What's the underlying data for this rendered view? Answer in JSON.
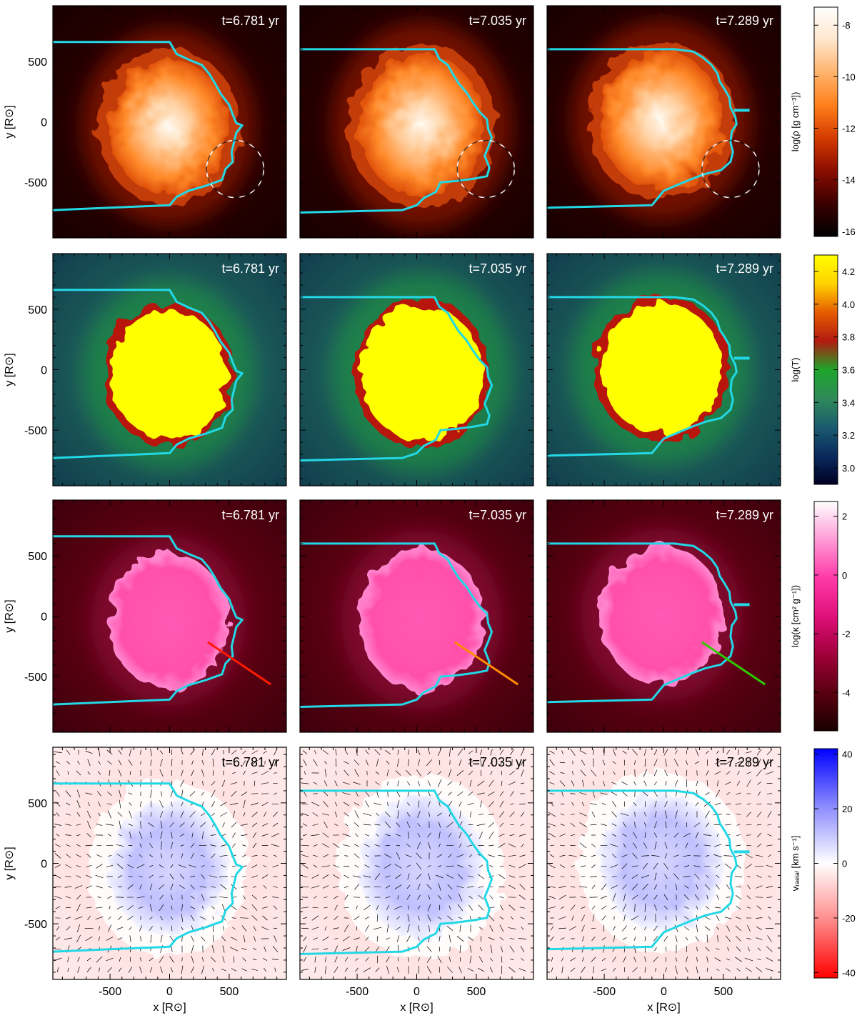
{
  "figure": {
    "times": [
      "t=6.781 yr",
      "t=7.035 yr",
      "t=7.289 yr"
    ],
    "ylabel": "y [R⊙]",
    "xlabel": "x [R⊙]",
    "xticks": [
      "-500",
      "0",
      "500"
    ],
    "yticks": [
      "500",
      "0",
      "-500"
    ],
    "rows": [
      {
        "quantity": "density",
        "colorbar_label": "log(ρ [g cm⁻³])",
        "colorbar_ticks": [
          "-8",
          "-10",
          "-12",
          "-14",
          "-16"
        ],
        "colorbar_range": [
          -16.2,
          -7.3
        ],
        "colormap": [
          "#000000",
          "#3a0000",
          "#8a0d00",
          "#d43a00",
          "#ff7f1a",
          "#ffb36b",
          "#ffe6cc",
          "#ffffff"
        ]
      },
      {
        "quantity": "temperature",
        "colorbar_label": "log(T)",
        "colorbar_ticks": [
          "4.2",
          "4.0",
          "3.8",
          "3.6",
          "3.4",
          "3.2",
          "3.0"
        ],
        "colorbar_range": [
          2.9,
          4.3
        ],
        "colormap": [
          "#000022",
          "#0a2a5e",
          "#1b5b6e",
          "#2f8a5a",
          "#1ea62a",
          "#b31a10",
          "#e65c00",
          "#ffd200",
          "#ffff00"
        ]
      },
      {
        "quantity": "opacity",
        "colorbar_label": "log(κ [cm² g⁻¹])",
        "colorbar_ticks": [
          "2",
          "0",
          "-2",
          "-4"
        ],
        "colorbar_range": [
          -5.3,
          2.5
        ],
        "colormap": [
          "#1a0000",
          "#5a0010",
          "#a0003a",
          "#e0107a",
          "#ff3aa8",
          "#ff9ad6",
          "#ffffff"
        ]
      },
      {
        "quantity": "radial velocity",
        "colorbar_label": "vᵣₐₑᵢₐₗ [km s⁻¹]",
        "colorbar_ticks": [
          "40",
          "20",
          "0",
          "-20",
          "-40"
        ],
        "colorbar_range": [
          -42,
          42
        ],
        "colormap": [
          "#ff0000",
          "#ff8a8a",
          "#ffffff",
          "#8a8aff",
          "#0000ff"
        ]
      }
    ],
    "boundary_color": "#22d8e6",
    "ray_colors": [
      "#ff1a00",
      "#ff8c00",
      "#2ecc00"
    ]
  }
}
